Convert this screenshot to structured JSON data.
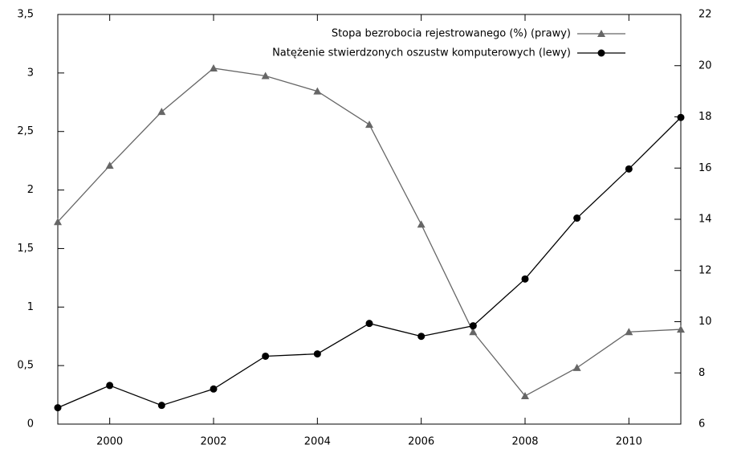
{
  "chart_data": {
    "type": "line",
    "x": [
      1999,
      2000,
      2001,
      2002,
      2003,
      2004,
      2005,
      2006,
      2007,
      2008,
      2009,
      2010,
      2011
    ],
    "series": [
      {
        "name": "Stopa bezrobocia rejestrowanego (%) (prawy)",
        "color": "#666666",
        "marker": "triangle",
        "axis": "y2",
        "values": [
          13.9,
          16.1,
          18.2,
          19.9,
          19.6,
          19.0,
          17.7,
          13.8,
          9.6,
          7.1,
          8.2,
          9.6,
          9.7
        ]
      },
      {
        "name": "Natężenie stwierdzonych oszustw komputerowych (lewy)",
        "color": "#000000",
        "marker": "circle",
        "values": [
          0.14,
          0.33,
          0.16,
          0.3,
          0.58,
          0.6,
          0.86,
          0.75,
          0.84,
          1.24,
          1.76,
          2.18,
          2.62
        ]
      }
    ],
    "xlim": [
      1999,
      2011
    ],
    "xticks": [
      2000,
      2002,
      2004,
      2006,
      2008,
      2010
    ],
    "ylim": [
      0,
      3.5
    ],
    "yticks": [
      0,
      {
        "value": 0.5,
        "label": "0,5"
      },
      1,
      {
        "value": 1.5,
        "label": "1,5"
      },
      2,
      {
        "value": 2.5,
        "label": "2,5"
      },
      3,
      {
        "value": 3.5,
        "label": "3,5"
      }
    ],
    "y2lim": [
      6,
      22
    ],
    "y2ticks": [
      6,
      8,
      10,
      12,
      14,
      16,
      18,
      20,
      22
    ],
    "legend": "top-right"
  }
}
